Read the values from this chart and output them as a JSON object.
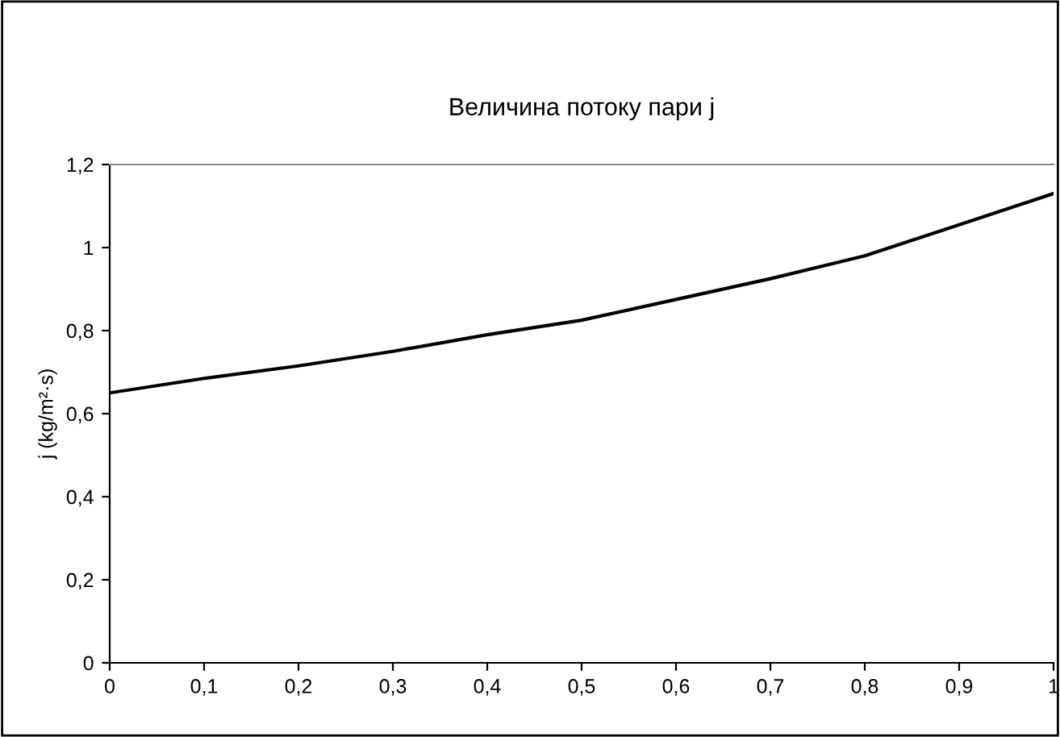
{
  "chart_data": {
    "type": "line",
    "title": "Величина потоку пари j",
    "ylabel": "j (kg/m²·s)",
    "x": [
      0,
      0.1,
      0.2,
      0.3,
      0.4,
      0.5,
      0.6,
      0.7,
      0.8,
      0.9,
      1
    ],
    "series": [
      {
        "color": "#000000",
        "values": [
          0.65,
          0.685,
          0.715,
          0.75,
          0.79,
          0.825,
          0.875,
          0.925,
          0.98,
          1.055,
          1.13
        ]
      }
    ],
    "xlim": [
      0,
      1
    ],
    "ylim": [
      0,
      1.2
    ],
    "xticks": [
      0,
      {
        "value": 0.1,
        "label": "0,1"
      },
      {
        "value": 0.2,
        "label": "0,2"
      },
      {
        "value": 0.3,
        "label": "0,3"
      },
      {
        "value": 0.4,
        "label": "0,4"
      },
      {
        "value": 0.5,
        "label": "0,5"
      },
      {
        "value": 0.6,
        "label": "0,6"
      },
      {
        "value": 0.7,
        "label": "0,7"
      },
      {
        "value": 0.8,
        "label": "0,8"
      },
      {
        "value": 0.9,
        "label": "0,9"
      },
      1
    ],
    "yticks": [
      0,
      {
        "value": 0.2,
        "label": "0,2"
      },
      {
        "value": 0.4,
        "label": "0,4"
      },
      {
        "value": 0.6,
        "label": "0,6"
      },
      {
        "value": 0.8,
        "label": "0,8"
      },
      1,
      {
        "value": 1.2,
        "label": "1,2"
      }
    ],
    "grid": false,
    "legend": false,
    "marker": "none",
    "line_style": "solid"
  }
}
